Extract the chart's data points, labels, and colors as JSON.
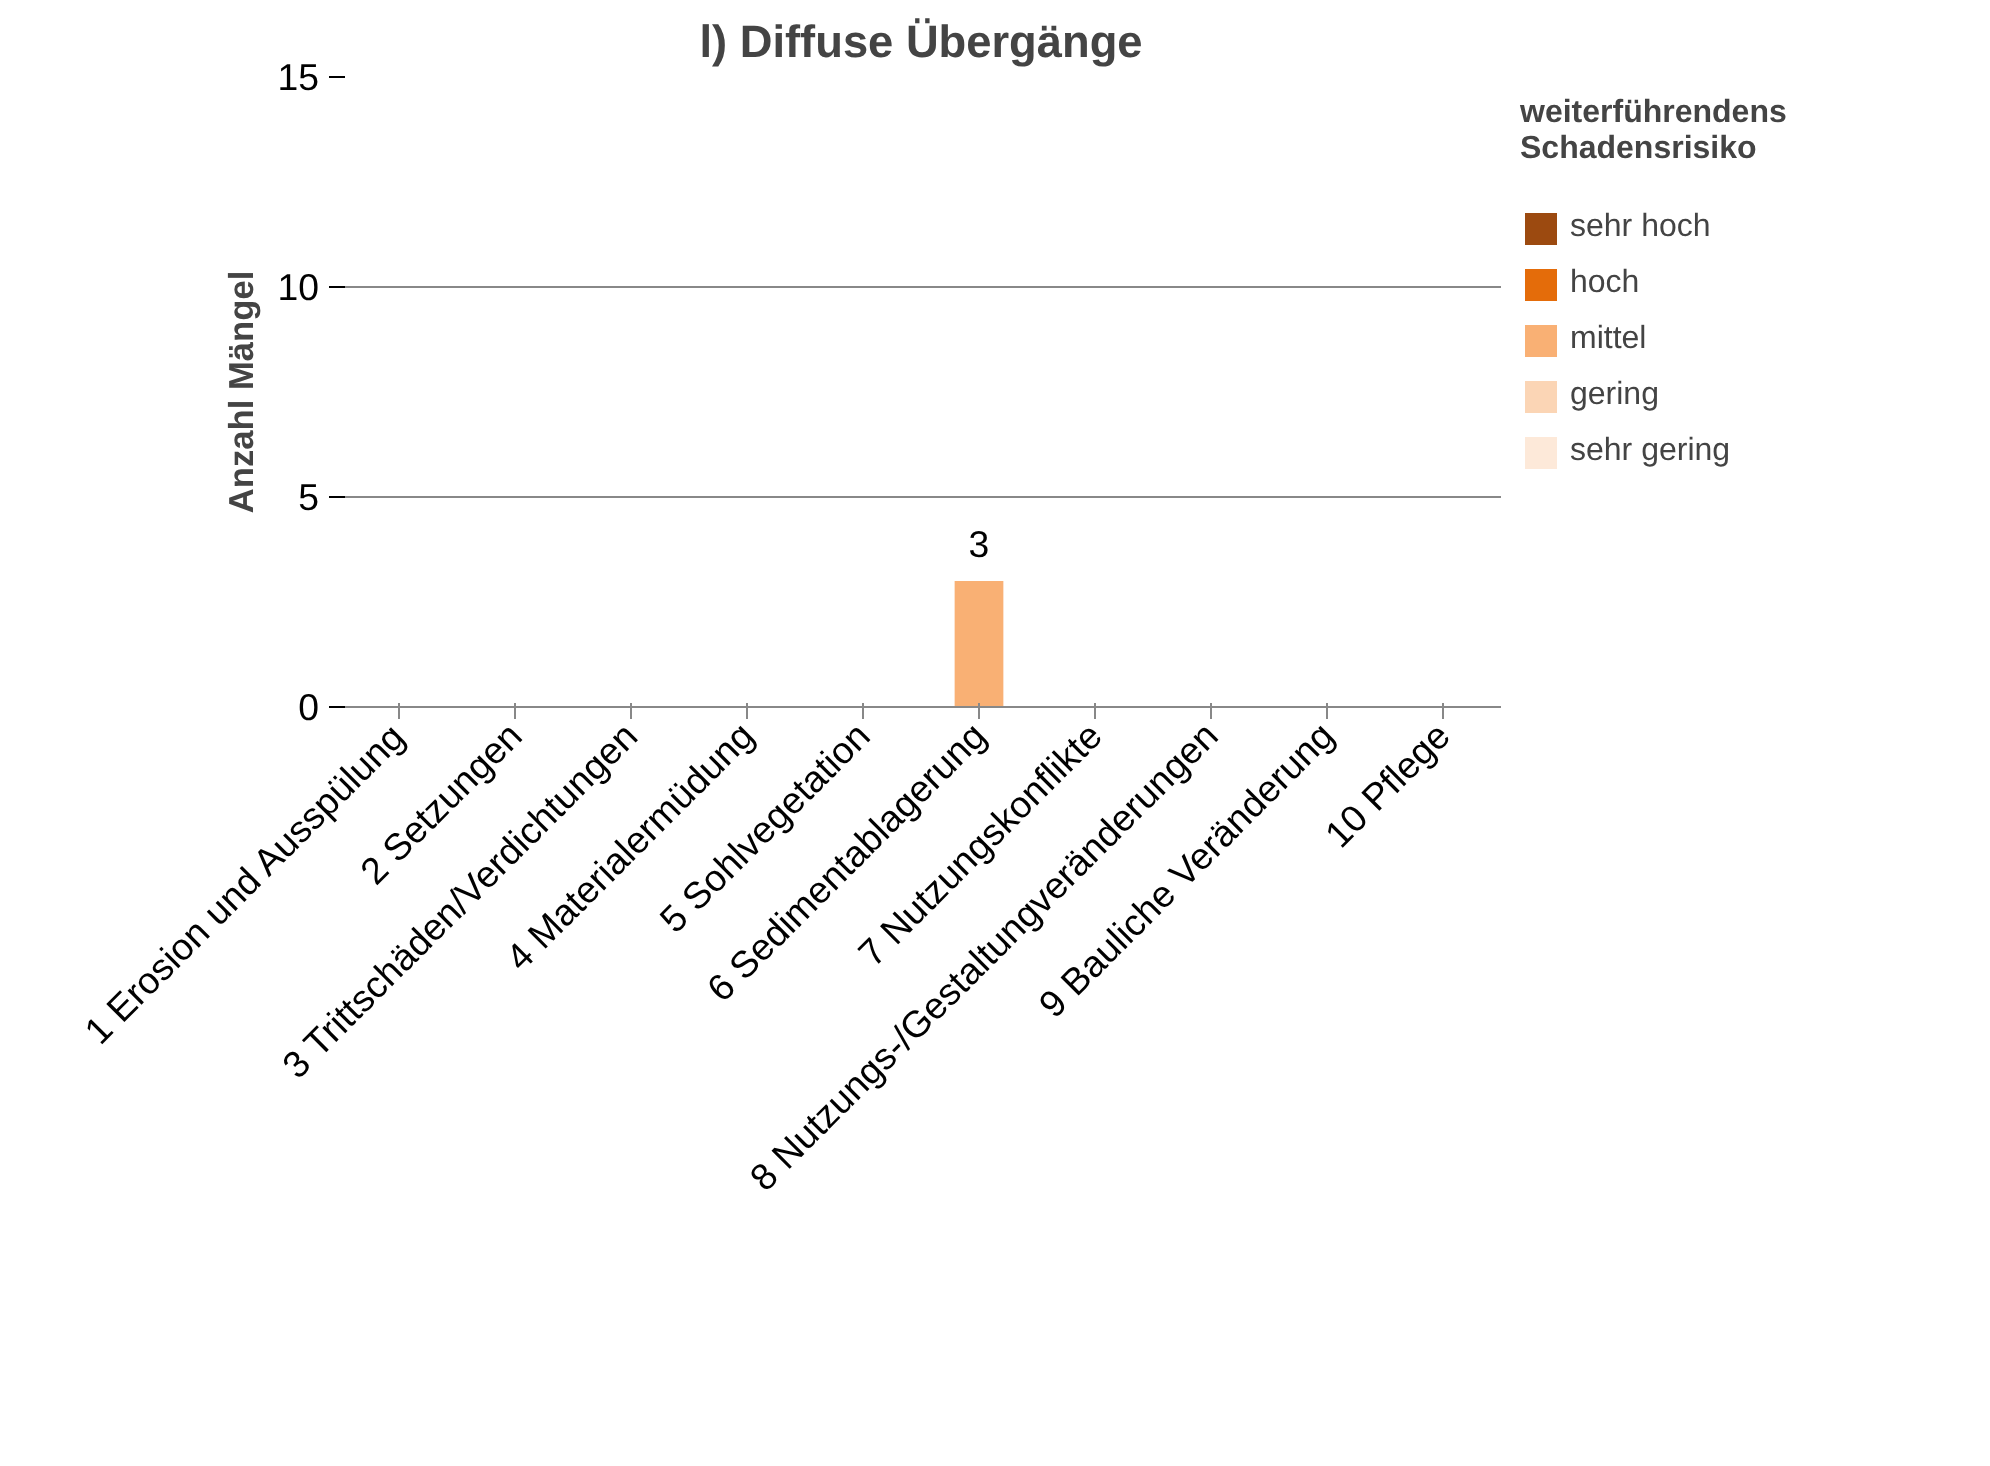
{
  "chart_data": {
    "type": "bar",
    "title": "l) Diffuse Übergänge",
    "ylabel": "Anzahl Mängel",
    "legend_title": "weiterführendens Schadensrisiko",
    "categories": [
      "1 Erosion und Ausspülung",
      "2 Setzungen",
      "3 Trittschäden/Verdichtungen",
      "4 Materialermüdung",
      "5 Sohlvegetation",
      "6 Sedimentablagerung",
      "7 Nutzungskonflikte",
      "8 Nutzungs-/Gestaltungveränderungen",
      "9 Bauliche Veränderung",
      "10 Pflege"
    ],
    "series": [
      {
        "name": "sehr hoch",
        "color": "#9c4a10",
        "values": [
          0,
          0,
          0,
          0,
          0,
          0,
          0,
          0,
          0,
          0
        ]
      },
      {
        "name": "hoch",
        "color": "#e46c0a",
        "values": [
          0,
          0,
          0,
          0,
          0,
          0,
          0,
          0,
          0,
          0
        ]
      },
      {
        "name": "mittel",
        "color": "#f9b074",
        "values": [
          0,
          0,
          0,
          0,
          0,
          3,
          0,
          0,
          0,
          0
        ],
        "value_labels": [
          null,
          null,
          null,
          null,
          null,
          "3",
          null,
          null,
          null,
          null
        ]
      },
      {
        "name": "gering",
        "color": "#fbd5b5",
        "values": [
          0,
          0,
          0,
          0,
          0,
          0,
          0,
          0,
          0,
          0
        ]
      },
      {
        "name": "sehr gering",
        "color": "#fde9d9",
        "values": [
          0,
          0,
          0,
          0,
          0,
          0,
          0,
          0,
          0,
          0
        ]
      }
    ],
    "stacked": true,
    "ylim": [
      0,
      15
    ],
    "yticks": [
      0,
      5,
      10,
      15
    ],
    "grid": "y",
    "legend": "right"
  }
}
